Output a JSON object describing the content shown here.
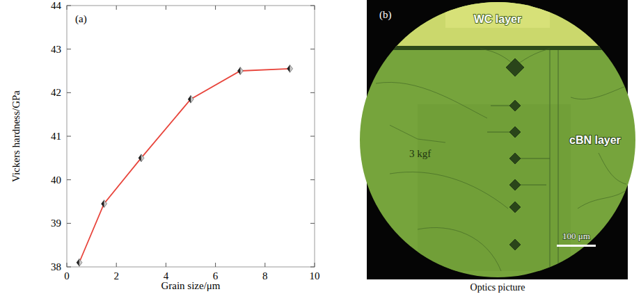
{
  "chart_data": {
    "type": "line",
    "panel_label": "(a)",
    "xlabel": "Grain size/μm",
    "ylabel": "Vickers hardness/GPa",
    "x": [
      0.5,
      1.5,
      3,
      5,
      7,
      9
    ],
    "values": [
      38.1,
      39.45,
      40.5,
      41.85,
      42.5,
      42.55
    ],
    "color": "#e8453c",
    "marker": "diamond",
    "line_style": "solid",
    "xlim": [
      0,
      10
    ],
    "xticks": [
      0,
      2,
      4,
      6,
      8,
      10
    ],
    "ylim": [
      38,
      44
    ],
    "yticks": [
      38,
      39,
      40,
      41,
      42,
      43,
      44
    ],
    "grid": false
  },
  "photo": {
    "panel_label": "(b)",
    "labels": {
      "top_layer": "WC layer",
      "bottom_layer": "cBN layer",
      "load": "3 kgf",
      "scale_bar": "100 μm"
    },
    "caption": "Optics picture"
  }
}
